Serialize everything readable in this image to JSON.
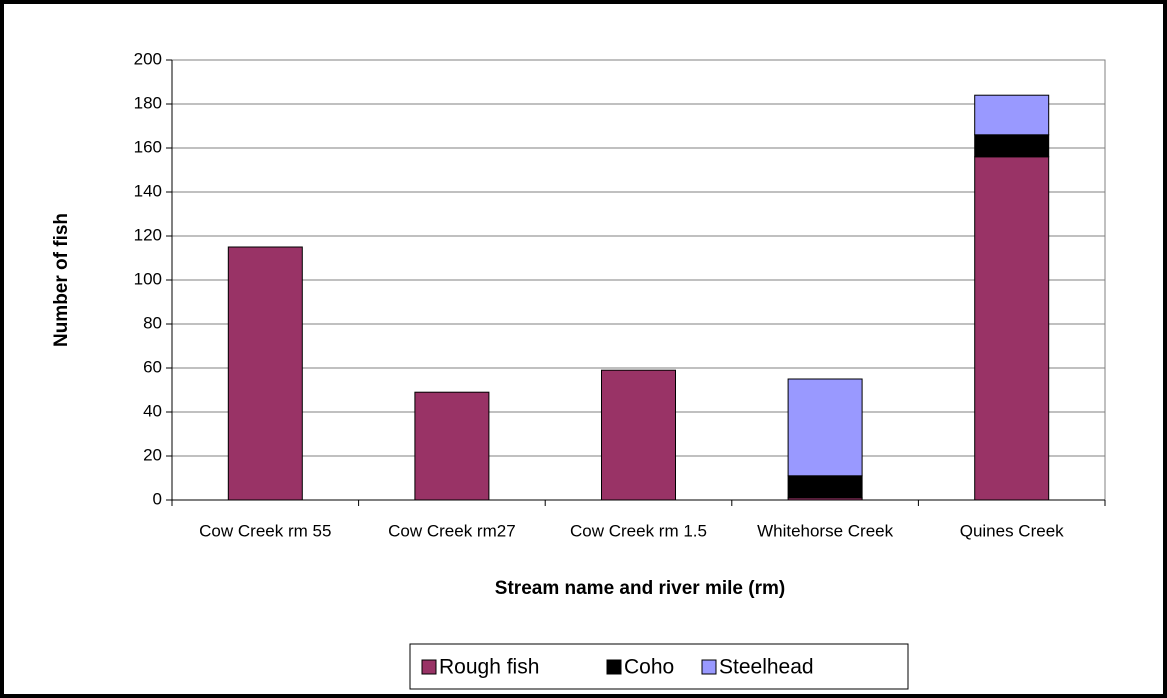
{
  "chart_data": {
    "type": "stacked_bar",
    "x_label": "Stream name and river mile (rm)",
    "y_label": "Number of fish",
    "categories": [
      "Cow  Creek rm 55",
      "Cow  Creek rm27",
      "Cow  Creek rm 1.5",
      "Whitehorse Creek",
      "Quines Creek"
    ],
    "series": [
      {
        "name": "Rough fish",
        "color": "#993366",
        "values": [
          115,
          49,
          59,
          1,
          156
        ]
      },
      {
        "name": "Coho",
        "color": "#000000",
        "values": [
          0,
          0,
          0,
          10,
          10
        ]
      },
      {
        "name": "Steelhead",
        "color": "#9999ff",
        "values": [
          0,
          0,
          0,
          44,
          18
        ]
      }
    ],
    "ylim": [
      0,
      200
    ],
    "yticks": [
      0,
      20,
      40,
      60,
      80,
      100,
      120,
      140,
      160,
      180,
      200
    ],
    "grid": true,
    "legend": "bottom"
  }
}
